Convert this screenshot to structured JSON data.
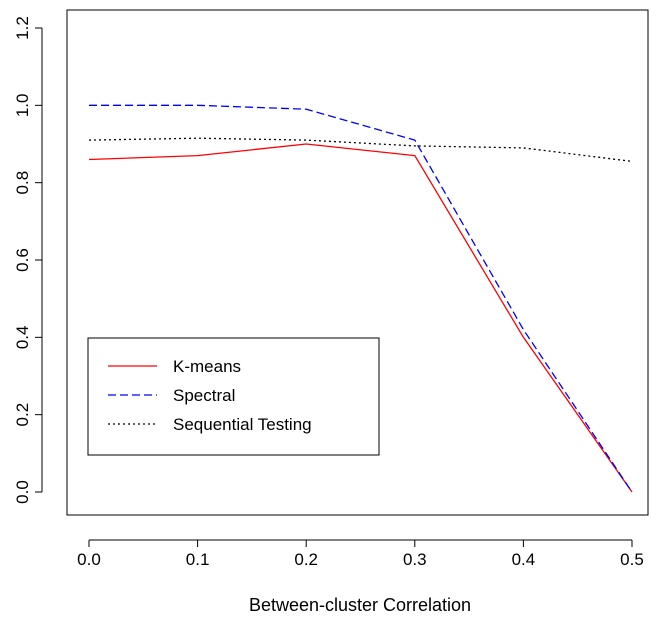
{
  "chart_data": {
    "type": "line",
    "title": "",
    "xlabel": "Between-cluster Correlation",
    "ylabel": "",
    "x": [
      0.0,
      0.1,
      0.2,
      0.3,
      0.4,
      0.5
    ],
    "x_tick_labels": [
      "0.0",
      "0.1",
      "0.2",
      "0.3",
      "0.4",
      "0.5"
    ],
    "y_tick_labels": [
      "0.0",
      "0.2",
      "0.4",
      "0.6",
      "0.8",
      "1.0",
      "1.2"
    ],
    "xlim": [
      0.0,
      0.5
    ],
    "ylim": [
      0.0,
      1.2
    ],
    "grid": false,
    "legend_position": "bottom-left",
    "series": [
      {
        "name": "K-means",
        "color": "#ff0000",
        "style": "solid",
        "values": [
          0.86,
          0.87,
          0.9,
          0.87,
          0.4,
          0.0
        ]
      },
      {
        "name": "Spectral",
        "color": "#0000ff",
        "style": "dashed",
        "values": [
          1.0,
          1.0,
          0.99,
          0.91,
          0.42,
          0.0
        ]
      },
      {
        "name": "Sequential Testing",
        "color": "#000000",
        "style": "dotted",
        "values": [
          0.91,
          0.915,
          0.91,
          0.895,
          0.89,
          0.855
        ]
      }
    ]
  }
}
